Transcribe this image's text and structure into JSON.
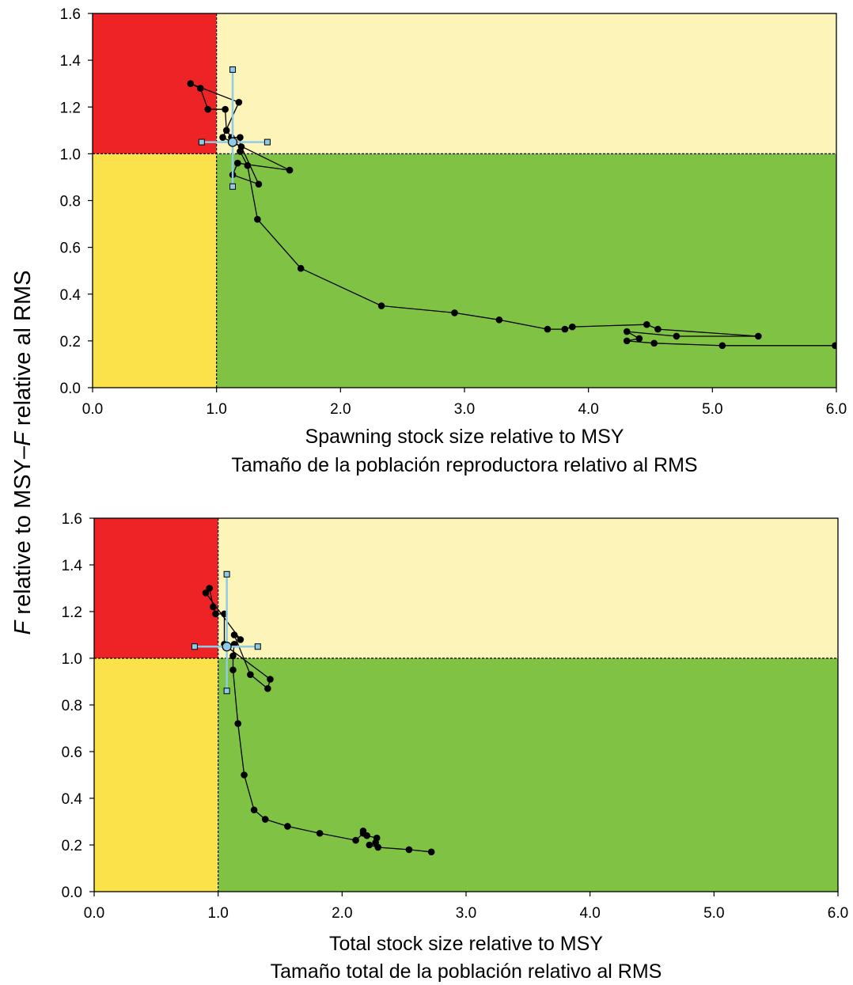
{
  "y_label_prefix": "F",
  "y_label_rest": " relative to MSY–",
  "y_label_prefix2": "F",
  "y_label_rest2": " relative al RMS",
  "zone_colors": {
    "overfished_overfishing": "#ee2326",
    "overfishing_only": "#fcf4b8",
    "overfished_only": "#fbe14a",
    "healthy": "#7fc244"
  },
  "marker_color": "#8ecbe8",
  "chart_data": [
    {
      "type": "scatter",
      "xlabel_lines": [
        "Spawning stock size relative to MSY",
        "Tamaño de la población reproductora relativo al RMS"
      ],
      "xlim": [
        0,
        6
      ],
      "ylim": [
        0,
        1.6
      ],
      "x_ticks": [
        "0.0",
        "1.0",
        "2.0",
        "3.0",
        "4.0",
        "5.0",
        "6.0"
      ],
      "y_ticks": [
        "0.0",
        "0.2",
        "0.4",
        "0.6",
        "0.8",
        "1.0",
        "1.2",
        "1.4",
        "1.6"
      ],
      "reference_lines": {
        "x": 1.0,
        "y": 1.0
      },
      "trajectory": [
        [
          6.15,
          0.2
        ],
        [
          5.99,
          0.18
        ],
        [
          5.08,
          0.18
        ],
        [
          4.53,
          0.19
        ],
        [
          4.31,
          0.2
        ],
        [
          4.41,
          0.21
        ],
        [
          4.31,
          0.24
        ],
        [
          4.71,
          0.22
        ],
        [
          5.37,
          0.22
        ],
        [
          4.56,
          0.25
        ],
        [
          4.47,
          0.27
        ],
        [
          3.87,
          0.26
        ],
        [
          3.81,
          0.25
        ],
        [
          3.67,
          0.25
        ],
        [
          3.28,
          0.29
        ],
        [
          2.92,
          0.32
        ],
        [
          2.33,
          0.35
        ],
        [
          1.68,
          0.51
        ],
        [
          1.33,
          0.72
        ],
        [
          1.25,
          0.95
        ],
        [
          1.19,
          1.01
        ],
        [
          1.19,
          1.07
        ],
        [
          1.12,
          1.07
        ],
        [
          1.08,
          1.1
        ],
        [
          1.07,
          1.19
        ],
        [
          0.93,
          1.19
        ],
        [
          0.87,
          1.28
        ],
        [
          0.79,
          1.3
        ],
        [
          1.18,
          1.22
        ],
        [
          1.05,
          1.07
        ],
        [
          1.2,
          1.03
        ],
        [
          1.34,
          0.87
        ],
        [
          1.13,
          0.91
        ],
        [
          1.17,
          0.96
        ],
        [
          1.59,
          0.93
        ],
        [
          1.13,
          1.05
        ]
      ],
      "current": {
        "x": 1.13,
        "y": 1.05,
        "x_low": 0.88,
        "x_high": 1.41,
        "y_low": 0.86,
        "y_high": 1.36
      }
    },
    {
      "type": "scatter",
      "xlabel_lines": [
        "Total stock size relative to MSY",
        "Tamaño total de la población relativo al RMS"
      ],
      "xlim": [
        0,
        6
      ],
      "ylim": [
        0,
        1.6
      ],
      "x_ticks": [
        "0.0",
        "1.0",
        "2.0",
        "3.0",
        "4.0",
        "5.0",
        "6.0"
      ],
      "y_ticks": [
        "0.0",
        "0.2",
        "0.4",
        "0.6",
        "0.8",
        "1.0",
        "1.2",
        "1.4",
        "1.6"
      ],
      "reference_lines": {
        "x": 1.0,
        "y": 1.0
      },
      "trajectory": [
        [
          2.72,
          0.17
        ],
        [
          2.54,
          0.18
        ],
        [
          2.29,
          0.19
        ],
        [
          2.22,
          0.2
        ],
        [
          2.27,
          0.21
        ],
        [
          2.28,
          0.23
        ],
        [
          2.2,
          0.24
        ],
        [
          2.17,
          0.26
        ],
        [
          2.17,
          0.25
        ],
        [
          2.11,
          0.22
        ],
        [
          1.82,
          0.25
        ],
        [
          1.56,
          0.28
        ],
        [
          1.38,
          0.31
        ],
        [
          1.29,
          0.35
        ],
        [
          1.21,
          0.5
        ],
        [
          1.16,
          0.72
        ],
        [
          1.12,
          0.95
        ],
        [
          1.12,
          1.01
        ],
        [
          1.13,
          1.06
        ],
        [
          1.05,
          1.06
        ],
        [
          1.05,
          1.19
        ],
        [
          0.98,
          1.19
        ],
        [
          0.96,
          1.22
        ],
        [
          0.93,
          1.3
        ],
        [
          0.9,
          1.28
        ],
        [
          1.18,
          1.08
        ],
        [
          1.13,
          1.1
        ],
        [
          1.26,
          0.93
        ],
        [
          1.4,
          0.87
        ],
        [
          1.42,
          0.91
        ],
        [
          1.07,
          1.05
        ]
      ],
      "current": {
        "x": 1.07,
        "y": 1.05,
        "x_low": 0.81,
        "x_high": 1.32,
        "y_low": 0.86,
        "y_high": 1.36
      }
    }
  ]
}
